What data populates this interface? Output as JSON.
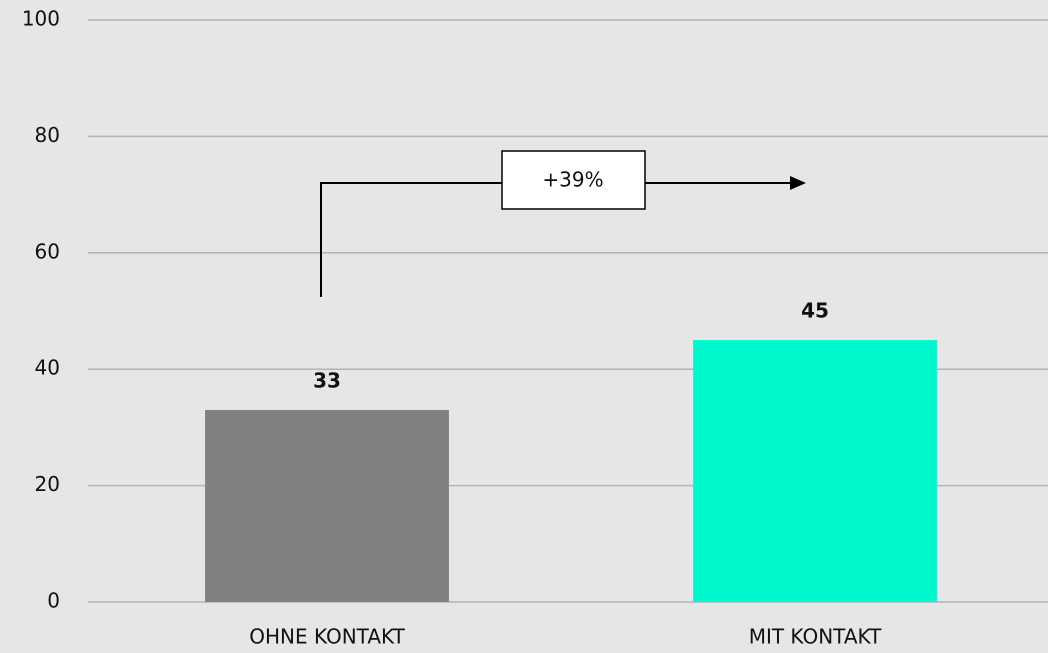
{
  "chart_data": {
    "type": "bar",
    "categories": [
      "OHNE KONTAKT",
      "MIT KONTAKT"
    ],
    "values": [
      33,
      45
    ],
    "colors": [
      "#808080",
      "#00f9cc"
    ],
    "ylim": [
      0,
      100
    ],
    "yticks": [
      0,
      20,
      40,
      60,
      80,
      100
    ],
    "grid": true,
    "annotation": "+39%"
  }
}
